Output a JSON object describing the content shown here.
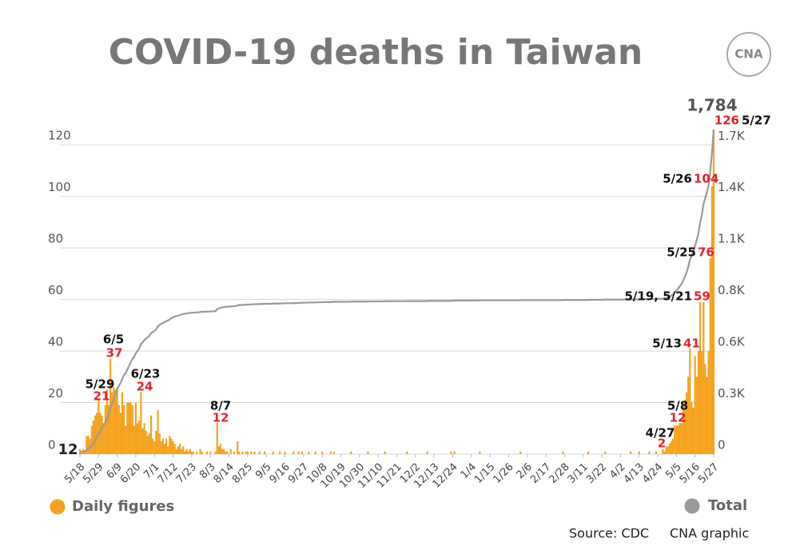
{
  "chart_data": {
    "type": "bar-line",
    "title": "COVID-19 deaths in Taiwan",
    "logo": "CNA",
    "source": "Source: CDC",
    "credit": "CNA graphic",
    "total_label": "1,784",
    "annotations": [
      "5/29",
      "6/5",
      "6/23",
      "8/7",
      "4/27",
      "5/8",
      "5/13",
      "5/19, 5/21",
      "5/25",
      "5/26",
      "5/27"
    ],
    "ylim": [
      0,
      130
    ],
    "yticks": [
      0,
      20,
      40,
      60,
      80,
      100,
      120
    ],
    "y2lim": [
      0,
      1841
    ],
    "y2ticks": [
      0,
      {
        "value": 283,
        "label": "0.3K"
      },
      {
        "value": 566,
        "label": "0.6K"
      },
      {
        "value": 850,
        "label": "0.8K"
      },
      {
        "value": 1133,
        "label": "1.1K"
      },
      {
        "value": 1416,
        "label": "1.4K"
      },
      {
        "value": 1699,
        "label": "1.7K"
      }
    ],
    "grid": true,
    "categories": [
      "5/18",
      null,
      null,
      null,
      null,
      null,
      null,
      null,
      null,
      null,
      null,
      "5/29",
      null,
      null,
      null,
      null,
      null,
      null,
      null,
      null,
      null,
      null,
      "6/9",
      null,
      null,
      null,
      null,
      null,
      null,
      null,
      null,
      null,
      null,
      "6/20",
      null,
      null,
      null,
      null,
      null,
      null,
      null,
      null,
      null,
      null,
      "7/1",
      null,
      null,
      null,
      null,
      null,
      null,
      null,
      null,
      null,
      null,
      "7/12",
      null,
      null,
      null,
      null,
      null,
      null,
      null,
      null,
      null,
      null,
      "7/23",
      null,
      null,
      null,
      null,
      null,
      null,
      null,
      null,
      null,
      null,
      "8/3",
      null,
      null,
      null,
      null,
      null,
      null,
      null,
      null,
      null,
      null,
      "8/14",
      null,
      null,
      null,
      null,
      null,
      null,
      null,
      null,
      null,
      null,
      "8/25",
      null,
      null,
      null,
      null,
      null,
      null,
      null,
      null,
      null,
      null,
      "9/5",
      null,
      null,
      null,
      null,
      null,
      null,
      null,
      null,
      null,
      null,
      "9/16",
      null,
      null,
      null,
      null,
      null,
      null,
      null,
      null,
      null,
      null,
      "9/27",
      null,
      null,
      null,
      null,
      null,
      null,
      null,
      null,
      null,
      null,
      "10/8",
      null,
      null,
      null,
      null,
      null,
      null,
      null,
      null,
      null,
      null,
      "10/19",
      null,
      null,
      null,
      null,
      null,
      null,
      null,
      null,
      null,
      null,
      "10/30",
      null,
      null,
      null,
      null,
      null,
      null,
      null,
      null,
      null,
      null,
      "11/10",
      null,
      null,
      null,
      null,
      null,
      null,
      null,
      null,
      null,
      null,
      "11/21",
      null,
      null,
      null,
      null,
      null,
      null,
      null,
      null,
      null,
      null,
      "12/2",
      null,
      null,
      null,
      null,
      null,
      null,
      null,
      null,
      null,
      null,
      "12/13",
      null,
      null,
      null,
      null,
      null,
      null,
      null,
      null,
      null,
      null,
      "12/24",
      null,
      null,
      null,
      null,
      null,
      null,
      null,
      null,
      null,
      null,
      "1/4",
      null,
      null,
      null,
      null,
      null,
      null,
      null,
      null,
      null,
      null,
      "1/15",
      null,
      null,
      null,
      null,
      null,
      null,
      null,
      null,
      null,
      null,
      "1/26",
      null,
      null,
      null,
      null,
      null,
      null,
      null,
      null,
      null,
      null,
      "2/6",
      null,
      null,
      null,
      null,
      null,
      null,
      null,
      null,
      null,
      null,
      "2/17",
      null,
      null,
      null,
      null,
      null,
      null,
      null,
      null,
      null,
      null,
      "2/28",
      null,
      null,
      null,
      null,
      null,
      null,
      null,
      null,
      null,
      null,
      "3/11",
      null,
      null,
      null,
      null,
      null,
      null,
      null,
      null,
      null,
      null,
      "3/22",
      null,
      null,
      null,
      null,
      null,
      null,
      null,
      null,
      null,
      null,
      "4/2",
      null,
      null,
      null,
      null,
      null,
      null,
      null,
      null,
      null,
      null,
      "4/13",
      null,
      null,
      null,
      null,
      null,
      null,
      null,
      null,
      null,
      null,
      "4/24",
      null,
      null,
      null,
      null,
      null,
      null,
      null,
      null,
      null,
      null,
      "5/5",
      null,
      null,
      null,
      null,
      null,
      null,
      null,
      null,
      null,
      null,
      "5/16",
      null,
      null,
      null,
      null,
      null,
      null,
      null,
      null,
      null,
      null,
      "5/27"
    ],
    "series": [
      {
        "name": "Daily figures",
        "color": "#f5a21e",
        "values": [
          2,
          1,
          2,
          1,
          7,
          7,
          6,
          11,
          13,
          15,
          16,
          21,
          16,
          15,
          12,
          19,
          25,
          19,
          37,
          24,
          26,
          25,
          26,
          19,
          16,
          24,
          19,
          11,
          20,
          20,
          20,
          19,
          11,
          20,
          12,
          13,
          24,
          10,
          12,
          9,
          7,
          8,
          15,
          6,
          5,
          9,
          17,
          8,
          5,
          6,
          4,
          6,
          3,
          7,
          6,
          5,
          4,
          2,
          3,
          4,
          2,
          3,
          1,
          2,
          1,
          2,
          1,
          1,
          0,
          1,
          0,
          2,
          1,
          0,
          0,
          1,
          0,
          1,
          0,
          0,
          1,
          12,
          3,
          4,
          2,
          2,
          1,
          1,
          0,
          2,
          0,
          1,
          0,
          5,
          1,
          0,
          1,
          0,
          1,
          1,
          0,
          1,
          0,
          1,
          0,
          0,
          1,
          0,
          0,
          1,
          0,
          0,
          0,
          0,
          1,
          0,
          0,
          0,
          1,
          0,
          0,
          1,
          0,
          0,
          0,
          0,
          1,
          0,
          0,
          1,
          0,
          1,
          0,
          0,
          0,
          1,
          0,
          0,
          0,
          1,
          0,
          0,
          0,
          1,
          0,
          0,
          0,
          0,
          1,
          0,
          1,
          0,
          0,
          0,
          0,
          0,
          0,
          0,
          0,
          0,
          1,
          0,
          0,
          0,
          0,
          0,
          0,
          0,
          0,
          0,
          1,
          0,
          0,
          0,
          0,
          0,
          0,
          0,
          0,
          0,
          1,
          0,
          0,
          0,
          0,
          0,
          0,
          0,
          0,
          0,
          0,
          0,
          0,
          1,
          0,
          0,
          0,
          0,
          0,
          0,
          0,
          0,
          0,
          0,
          0,
          1,
          0,
          0,
          0,
          0,
          0,
          0,
          0,
          0,
          0,
          0,
          0,
          0,
          0,
          1,
          0,
          1,
          0,
          0,
          0,
          0,
          0,
          0,
          0,
          0,
          0,
          0,
          0,
          0,
          0,
          0,
          1,
          0,
          0,
          0,
          0,
          0,
          0,
          0,
          0,
          0,
          0,
          0,
          0,
          0,
          0,
          0,
          0,
          0,
          0,
          0,
          0,
          0,
          0,
          0,
          1,
          0,
          0,
          0,
          0,
          0,
          0,
          0,
          0,
          0,
          0,
          0,
          0,
          0,
          0,
          0,
          0,
          0,
          0,
          0,
          0,
          0,
          0,
          0,
          0,
          1,
          0,
          0,
          0,
          0,
          0,
          0,
          0,
          0,
          0,
          0,
          0,
          0,
          0,
          0,
          1,
          0,
          0,
          0,
          0,
          0,
          0,
          0,
          0,
          0,
          1,
          0,
          0,
          0,
          0,
          0,
          0,
          0,
          0,
          0,
          0,
          0,
          0,
          0,
          0,
          1,
          0,
          0,
          0,
          0,
          1,
          0,
          0,
          0,
          0,
          0,
          1,
          0,
          0,
          0,
          1,
          0,
          0,
          0,
          2,
          1,
          3,
          3,
          4,
          5,
          6,
          11,
          11,
          11,
          12,
          12,
          19,
          21,
          24,
          30,
          41,
          20,
          18,
          38,
          30,
          40,
          59,
          40,
          59,
          35,
          30,
          40,
          76,
          104,
          126
        ]
      },
      {
        "name": "Total",
        "color": "#9a9a9a",
        "axis": "y2",
        "values": [
          12,
          13,
          15,
          16,
          23,
          30,
          36,
          47,
          60,
          75,
          91,
          112,
          128,
          143,
          155,
          174,
          199,
          218,
          255,
          279,
          305,
          330,
          356,
          375,
          391,
          415,
          434,
          445,
          465,
          485,
          505,
          524,
          535,
          555,
          567,
          580,
          604,
          614,
          626,
          635,
          642,
          650,
          665,
          671,
          676,
          685,
          702,
          710,
          715,
          721,
          725,
          731,
          734,
          741,
          747,
          752,
          756,
          758,
          761,
          765,
          767,
          770,
          771,
          773,
          774,
          776,
          777,
          778,
          778,
          779,
          779,
          781,
          782,
          782,
          782,
          783,
          783,
          784,
          784,
          784,
          785,
          797,
          800,
          804,
          806,
          808,
          809,
          810,
          810,
          812,
          812,
          813,
          813,
          818,
          819,
          819,
          820,
          820,
          821,
          822,
          822,
          823,
          823,
          824,
          824,
          824,
          825,
          825,
          825,
          826,
          826,
          826,
          826,
          826,
          827,
          827,
          827,
          827,
          828,
          828,
          828,
          829,
          829,
          829,
          829,
          829,
          830,
          830,
          830,
          831,
          831,
          832,
          832,
          832,
          832,
          833,
          833,
          833,
          833,
          834,
          834,
          834,
          834,
          835,
          835,
          835,
          835,
          835,
          836,
          836,
          837,
          837,
          837,
          837,
          837,
          837,
          837,
          837,
          837,
          837,
          838,
          838,
          838,
          838,
          838,
          838,
          838,
          838,
          838,
          838,
          839,
          839,
          839,
          839,
          839,
          839,
          839,
          839,
          839,
          839,
          840,
          840,
          840,
          840,
          840,
          840,
          840,
          840,
          840,
          840,
          840,
          840,
          840,
          841,
          841,
          841,
          841,
          841,
          841,
          841,
          841,
          841,
          841,
          841,
          841,
          842,
          842,
          842,
          842,
          842,
          842,
          842,
          842,
          842,
          842,
          842,
          842,
          842,
          842,
          843,
          843,
          844,
          844,
          844,
          844,
          844,
          844,
          844,
          844,
          844,
          844,
          844,
          844,
          844,
          844,
          844,
          845,
          845,
          845,
          845,
          845,
          845,
          845,
          845,
          845,
          845,
          845,
          845,
          845,
          845,
          845,
          845,
          845,
          845,
          845,
          845,
          845,
          845,
          845,
          845,
          846,
          846,
          846,
          846,
          846,
          846,
          846,
          846,
          846,
          846,
          846,
          846,
          846,
          846,
          846,
          846,
          846,
          846,
          846,
          846,
          846,
          846,
          846,
          846,
          846,
          847,
          847,
          847,
          847,
          847,
          847,
          847,
          847,
          847,
          847,
          847,
          847,
          847,
          847,
          847,
          848,
          848,
          848,
          848,
          848,
          848,
          848,
          848,
          848,
          848,
          849,
          849,
          849,
          849,
          849,
          849,
          849,
          849,
          849,
          849,
          849,
          849,
          849,
          849,
          849,
          850,
          850,
          850,
          850,
          850,
          851,
          851,
          851,
          851,
          851,
          851,
          852,
          852,
          852,
          852,
          853,
          853,
          853,
          853,
          855,
          856,
          859,
          862,
          866,
          871,
          877,
          888,
          899,
          910,
          922,
          934,
          953,
          974,
          998,
          1028,
          1069,
          1089,
          1107,
          1145,
          1175,
          1215,
          1274,
          1314,
          1373,
          1408,
          1438,
          1478,
          1554,
          1658,
          1784
        ]
      }
    ]
  }
}
